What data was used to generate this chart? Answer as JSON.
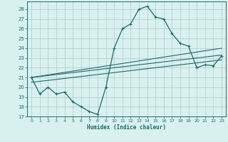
{
  "xlabel": "Humidex (Indice chaleur)",
  "xlim": [
    -0.5,
    23.5
  ],
  "ylim": [
    17,
    28.8
  ],
  "yticks": [
    17,
    18,
    19,
    20,
    21,
    22,
    23,
    24,
    25,
    26,
    27,
    28
  ],
  "xticks": [
    0,
    1,
    2,
    3,
    4,
    5,
    6,
    7,
    8,
    9,
    10,
    11,
    12,
    13,
    14,
    15,
    16,
    17,
    18,
    19,
    20,
    21,
    22,
    23
  ],
  "bg_color": "#d8f0ee",
  "line_color": "#1a6b6b",
  "grid_color": "#b0c8c8",
  "main_line": [
    21.0,
    19.3,
    20.0,
    19.3,
    19.5,
    18.5,
    18.0,
    17.5,
    17.2,
    20.0,
    24.0,
    26.0,
    26.5,
    28.0,
    28.3,
    27.2,
    27.0,
    25.5,
    24.5,
    24.2,
    22.0,
    22.3,
    22.2,
    23.2
  ],
  "reg_lines": [
    [
      [
        0,
        23
      ],
      [
        21.0,
        24.0
      ]
    ],
    [
      [
        0,
        23
      ],
      [
        21.0,
        23.3
      ]
    ],
    [
      [
        0,
        23
      ],
      [
        20.5,
        22.8
      ]
    ]
  ]
}
